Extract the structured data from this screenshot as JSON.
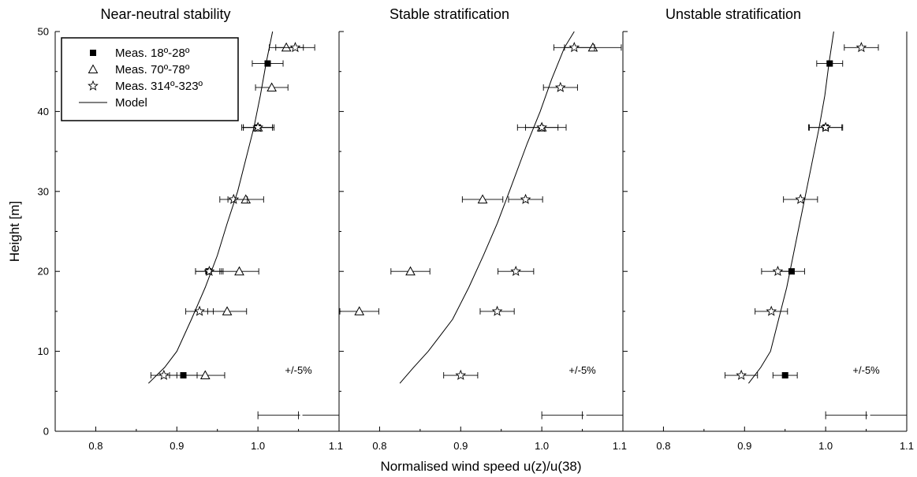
{
  "chart_data": {
    "type": "scatter",
    "ylabel": "Height [m]",
    "xlabel": "Normalised wind speed u(z)/u(38)",
    "xlim": [
      0.75,
      1.1
    ],
    "ylim": [
      0,
      50
    ],
    "xticks": [
      "0.8",
      "0.9",
      "1.0",
      "1.1"
    ],
    "yticks": [
      "0",
      "10",
      "20",
      "30",
      "40",
      "50"
    ],
    "legend": {
      "placement": "top-left of first panel",
      "entries": [
        {
          "label": "Meas. 18º-28º",
          "marker": "filled-square"
        },
        {
          "label": "Meas. 70º-78º",
          "marker": "open-triangle"
        },
        {
          "label": "Meas. 314º-323º",
          "marker": "open-star"
        },
        {
          "label": "Model",
          "marker": "line"
        }
      ]
    },
    "panels": [
      {
        "title": "Near-neutral stability",
        "note": "+/-5%",
        "ref_bar": {
          "center": 1.05,
          "y": 2,
          "half_width": 0.05
        },
        "series": [
          {
            "name": "Meas. 18º-28º",
            "marker": "filled-square",
            "points": [
              [
                0.908,
                7,
                0.017
              ],
              [
                0.939,
                20,
                0.016
              ],
              [
                1.0,
                38,
                0.018
              ],
              [
                1.012,
                46,
                0.019
              ]
            ]
          },
          {
            "name": "Meas. 70º-78º",
            "marker": "open-triangle",
            "points": [
              [
                0.935,
                7,
                0.024
              ],
              [
                0.962,
                15,
                0.024
              ],
              [
                0.977,
                20,
                0.024
              ],
              [
                0.985,
                29,
                0.022
              ],
              [
                1.0,
                38,
                0.02
              ],
              [
                1.017,
                43,
                0.02
              ],
              [
                1.035,
                48,
                0.021
              ]
            ]
          },
          {
            "name": "Meas. 314º-323º",
            "marker": "open-star",
            "points": [
              [
                0.884,
                7,
                0.016
              ],
              [
                0.928,
                15,
                0.017
              ],
              [
                0.94,
                20,
                0.017
              ],
              [
                0.97,
                29,
                0.017
              ],
              [
                1.0,
                38,
                0.018
              ],
              [
                1.046,
                48,
                0.024
              ]
            ]
          },
          {
            "name": "Model",
            "marker": "line",
            "points": [
              [
                0.865,
                6
              ],
              [
                0.885,
                8
              ],
              [
                0.9,
                10
              ],
              [
                0.918,
                14
              ],
              [
                0.935,
                18
              ],
              [
                0.95,
                22
              ],
              [
                0.962,
                26
              ],
              [
                0.975,
                30
              ],
              [
                0.985,
                34
              ],
              [
                0.995,
                38
              ],
              [
                1.003,
                42
              ],
              [
                1.01,
                46
              ],
              [
                1.018,
                50
              ]
            ]
          }
        ]
      },
      {
        "title": "Stable stratification",
        "note": "+/-5%",
        "ref_bar": {
          "center": 1.05,
          "y": 2,
          "half_width": 0.05
        },
        "series": [
          {
            "name": "Meas. 70º-78º",
            "marker": "open-triangle",
            "points": [
              [
                0.775,
                15,
                0.024
              ],
              [
                0.838,
                20,
                0.024
              ],
              [
                0.927,
                29,
                0.025
              ],
              [
                1.0,
                38,
                0.02
              ],
              [
                1.063,
                48,
                0.035
              ]
            ]
          },
          {
            "name": "Meas. 314º-323º",
            "marker": "open-star",
            "points": [
              [
                0.9,
                7,
                0.021
              ],
              [
                0.945,
                15,
                0.021
              ],
              [
                0.968,
                20,
                0.022
              ],
              [
                0.98,
                29,
                0.021
              ],
              [
                1.0,
                38,
                0.03
              ],
              [
                1.023,
                43,
                0.021
              ],
              [
                1.04,
                48,
                0.025
              ]
            ]
          },
          {
            "name": "Model",
            "marker": "line",
            "points": [
              [
                0.825,
                6
              ],
              [
                0.842,
                8
              ],
              [
                0.86,
                10
              ],
              [
                0.875,
                12
              ],
              [
                0.89,
                14
              ],
              [
                0.91,
                18
              ],
              [
                0.928,
                22
              ],
              [
                0.945,
                26
              ],
              [
                0.96,
                30
              ],
              [
                0.982,
                36
              ],
              [
                0.998,
                40
              ],
              [
                1.012,
                44
              ],
              [
                1.028,
                48
              ],
              [
                1.04,
                50
              ]
            ]
          }
        ]
      },
      {
        "title": "Unstable stratification",
        "note": "+/-5%",
        "ref_bar": {
          "center": 1.05,
          "y": 2,
          "half_width": 0.05
        },
        "series": [
          {
            "name": "Meas. 18º-28º",
            "marker": "filled-square",
            "points": [
              [
                0.95,
                7,
                0.015
              ],
              [
                0.958,
                20,
                0.016
              ],
              [
                1.0,
                38,
                0.021
              ],
              [
                1.005,
                46,
                0.016
              ]
            ]
          },
          {
            "name": "Meas. 314º-323º",
            "marker": "open-star",
            "points": [
              [
                0.896,
                7,
                0.02
              ],
              [
                0.933,
                15,
                0.02
              ],
              [
                0.941,
                20,
                0.02
              ],
              [
                0.969,
                29,
                0.021
              ],
              [
                1.0,
                38,
                0.02
              ],
              [
                1.044,
                48,
                0.021
              ]
            ]
          },
          {
            "name": "Model",
            "marker": "line",
            "points": [
              [
                0.905,
                6
              ],
              [
                0.92,
                8
              ],
              [
                0.932,
                10
              ],
              [
                0.942,
                14
              ],
              [
                0.952,
                18
              ],
              [
                0.96,
                22
              ],
              [
                0.968,
                26
              ],
              [
                0.976,
                30
              ],
              [
                0.984,
                34
              ],
              [
                0.992,
                38
              ],
              [
                0.999,
                42
              ],
              [
                1.004,
                46
              ],
              [
                1.01,
                50
              ]
            ]
          }
        ]
      }
    ]
  }
}
